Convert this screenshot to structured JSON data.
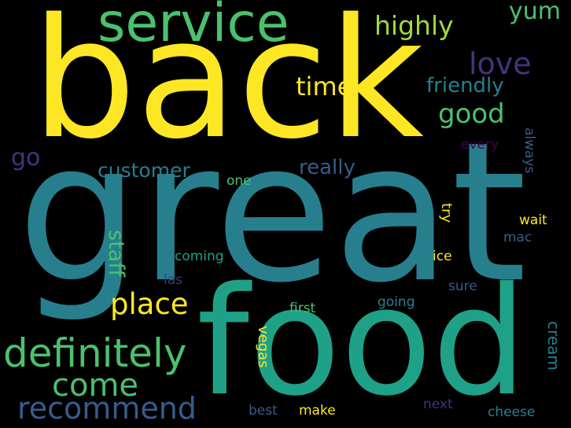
{
  "colors": {
    "background": "#000000",
    "yellow": "#fde725",
    "lime": "#a0da39",
    "green": "#4ac16d",
    "seagreen": "#1fa187",
    "teal": "#277f8e",
    "blue": "#365c8d",
    "indigo": "#46327e",
    "purple": "#440154"
  },
  "words": {
    "great": "great",
    "back": "back",
    "food": "food",
    "service": "service",
    "definitely": "definitely",
    "place": "place",
    "come": "come",
    "recommend": "recommend",
    "love": "love",
    "good": "good",
    "time": "time",
    "highly": "highly",
    "yum": "yum",
    "friendly": "friendly",
    "customer": "customer",
    "really": "really",
    "go": "go",
    "staff": "staff",
    "every": "every",
    "always": "always",
    "one": "one",
    "try": "try",
    "wait": "wait",
    "mac": "mac",
    "coming": "coming",
    "ice": "ice",
    "las": "las",
    "sure": "sure",
    "going": "going",
    "first": "first",
    "vegas": "vegas",
    "cream": "cream",
    "best": "best",
    "make": "make",
    "next": "next",
    "cheese": "cheese"
  }
}
